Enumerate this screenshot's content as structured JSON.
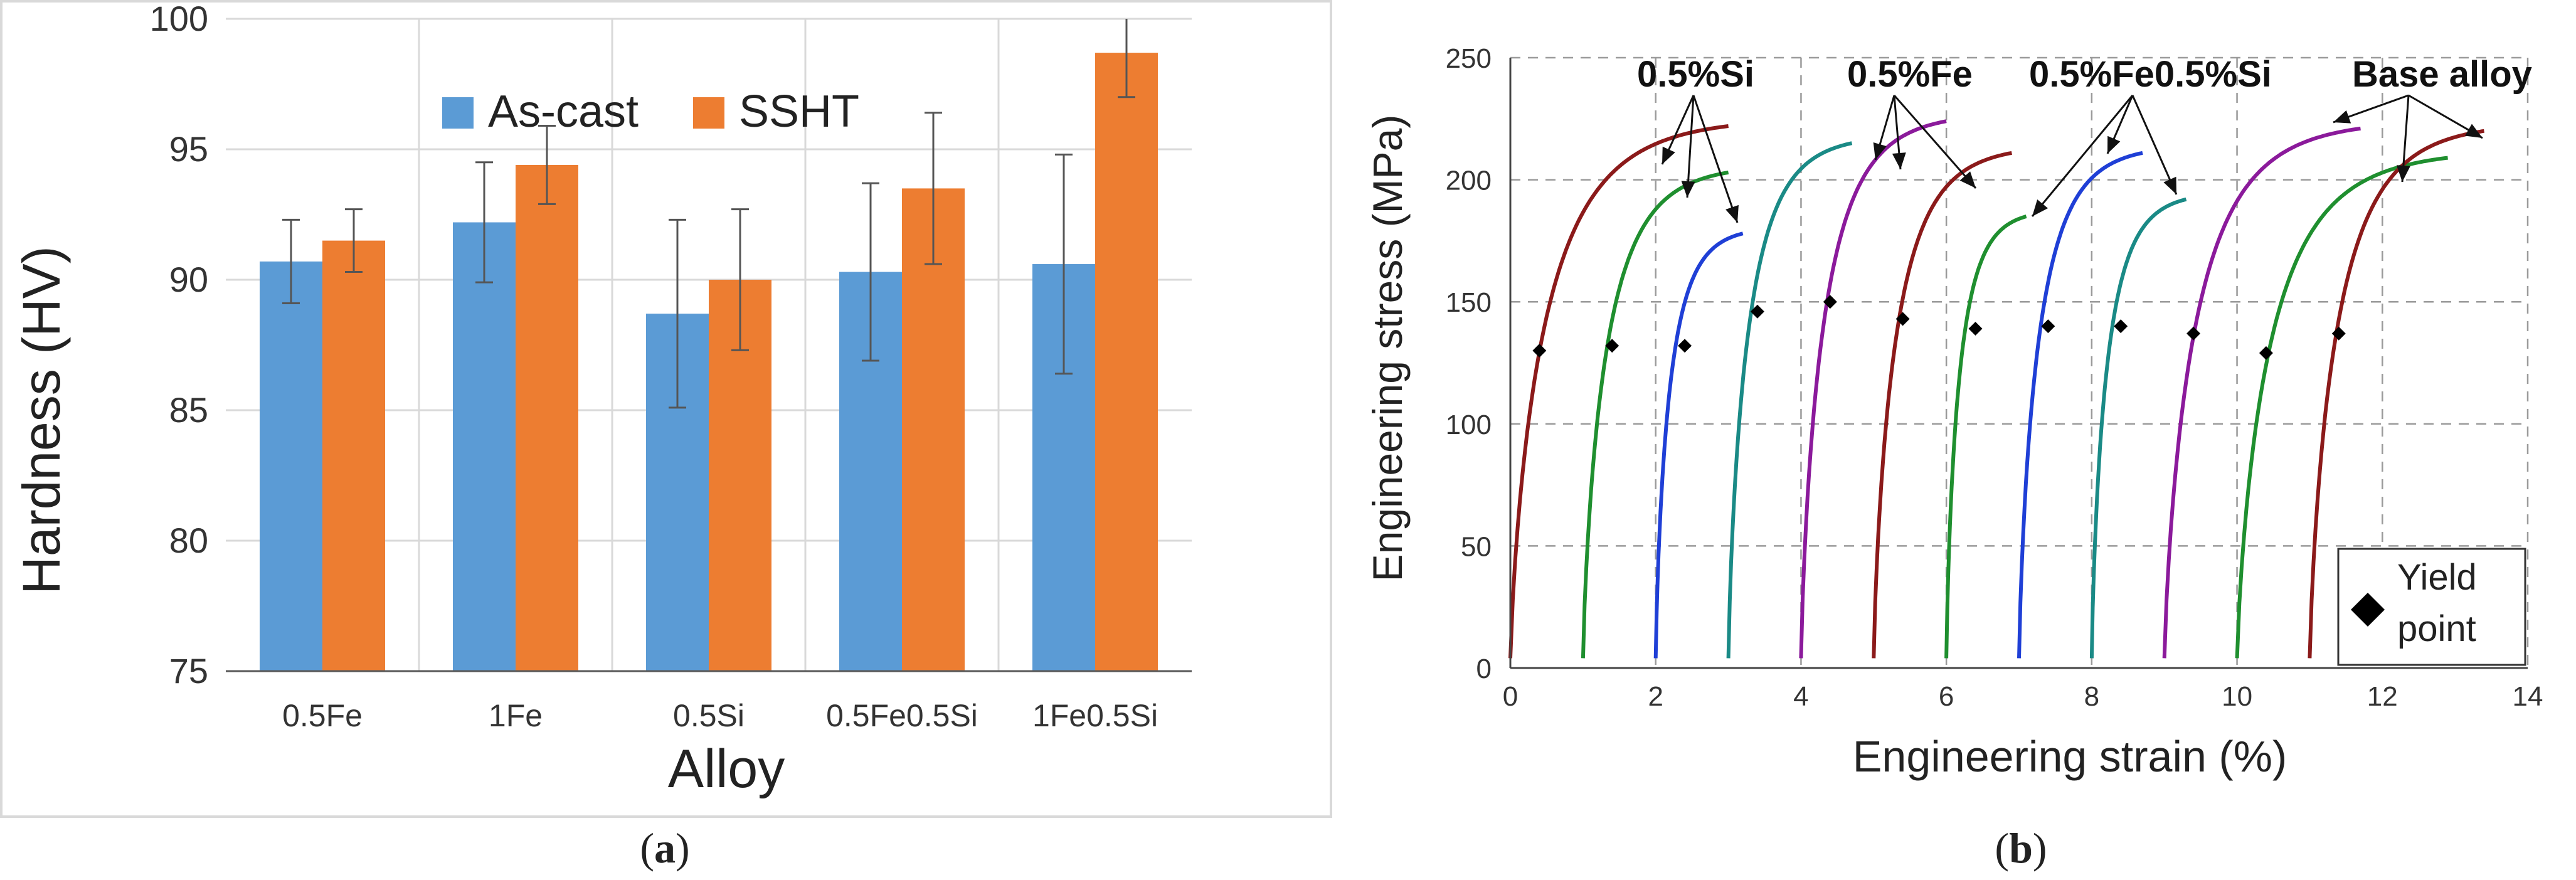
{
  "chart_data": [
    {
      "type": "bar",
      "panel_label": "(a)",
      "panel_letter": "a",
      "xlabel": "Alloy",
      "ylabel": "Hardness (HV)",
      "ylim": [
        75,
        100
      ],
      "yticks": [
        75,
        80,
        85,
        90,
        95,
        100
      ],
      "grid": true,
      "legend": "top-center",
      "categories": [
        "0.5Fe",
        "1Fe",
        "0.5Si",
        "0.5Fe0.5Si",
        "1Fe0.5Si"
      ],
      "series": [
        {
          "name": "As-cast",
          "color": "#5b9bd5",
          "values": [
            90.7,
            92.2,
            88.7,
            90.3,
            90.6
          ],
          "errors": [
            1.6,
            2.3,
            3.6,
            3.4,
            4.2
          ]
        },
        {
          "name": "SSHT",
          "color": "#ed7d31",
          "values": [
            91.5,
            94.4,
            90.0,
            93.5,
            98.7
          ],
          "errors": [
            1.2,
            1.5,
            2.7,
            2.9,
            1.7
          ]
        }
      ]
    },
    {
      "type": "line",
      "panel_label": "(b)",
      "panel_letter": "b",
      "xlabel": "Engineering strain (%)",
      "ylabel": "Engineering stress (MPa)",
      "xlim": [
        0,
        14
      ],
      "ylim": [
        0,
        250
      ],
      "xticks": [
        0,
        2,
        4,
        6,
        8,
        10,
        12,
        14
      ],
      "yticks": [
        0,
        50,
        100,
        150,
        200,
        250
      ],
      "grid": true,
      "group_labels": [
        "0.5%Si",
        "0.5%Fe",
        "0.5%Fe0.5%Si",
        "Base alloy"
      ],
      "legend_text": [
        "Yield",
        "point"
      ],
      "series": [
        {
          "name": "0.5%Si curve 1",
          "color": "#8b1a1a",
          "offset": 0.0,
          "end_strain": 3.0,
          "end_stress": 222,
          "yield": [
            0.4,
            130
          ]
        },
        {
          "name": "0.5%Si curve 2",
          "color": "#1f8f2f",
          "offset": 1.0,
          "end_strain": 3.0,
          "end_stress": 203,
          "yield": [
            1.4,
            132
          ]
        },
        {
          "name": "0.5%Si curve 3",
          "color": "#1f3fd6",
          "offset": 2.0,
          "end_strain": 3.2,
          "end_stress": 178,
          "yield": [
            2.4,
            132
          ]
        },
        {
          "name": "0.5%Fe curve 1",
          "color": "#1a8a86",
          "offset": 3.0,
          "end_strain": 4.7,
          "end_stress": 215,
          "yield": [
            3.4,
            146
          ]
        },
        {
          "name": "0.5%Fe curve 2",
          "color": "#8b1a9b",
          "offset": 4.0,
          "end_strain": 6.0,
          "end_stress": 224,
          "yield": [
            4.4,
            150
          ]
        },
        {
          "name": "0.5%Fe curve 3",
          "color": "#8b1a1a",
          "offset": 5.0,
          "end_strain": 6.9,
          "end_stress": 211,
          "yield": [
            5.4,
            143
          ]
        },
        {
          "name": "0.5%Fe0.5%Si curve 1",
          "color": "#1f8f2f",
          "offset": 6.0,
          "end_strain": 7.1,
          "end_stress": 185,
          "yield": [
            6.4,
            139
          ]
        },
        {
          "name": "0.5%Fe0.5%Si curve 2",
          "color": "#1f3fd6",
          "offset": 7.0,
          "end_strain": 8.7,
          "end_stress": 211,
          "yield": [
            7.4,
            140
          ]
        },
        {
          "name": "0.5%Fe0.5%Si curve 3",
          "color": "#1a8a86",
          "offset": 8.0,
          "end_strain": 9.3,
          "end_stress": 192,
          "yield": [
            8.4,
            140
          ]
        },
        {
          "name": "Base alloy curve 1",
          "color": "#8b1a9b",
          "offset": 9.0,
          "end_strain": 11.7,
          "end_stress": 221,
          "yield": [
            9.4,
            137
          ]
        },
        {
          "name": "Base alloy curve 2",
          "color": "#1f8f2f",
          "offset": 10.0,
          "end_strain": 12.9,
          "end_stress": 209,
          "yield": [
            10.4,
            129
          ]
        },
        {
          "name": "Base alloy curve 3",
          "color": "#8b1a1a",
          "offset": 11.0,
          "end_strain": 13.4,
          "end_stress": 220,
          "yield": [
            11.4,
            137
          ]
        }
      ]
    }
  ]
}
